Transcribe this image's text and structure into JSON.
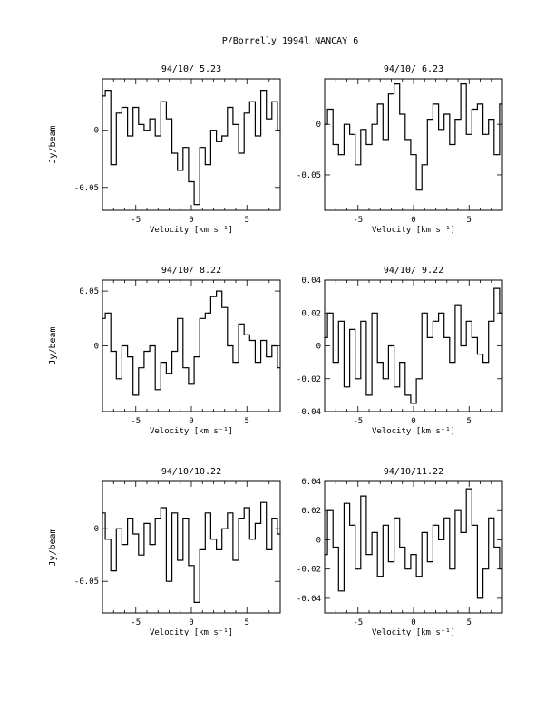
{
  "figure": {
    "title": "P/Borrelly 1994l    NANCAY      6"
  },
  "chart_data": [
    {
      "type": "line",
      "title": "94/10/ 5.23",
      "xlabel": "Velocity [km s⁻¹]",
      "ylabel": "Jy/beam",
      "xlim": [
        -8,
        8
      ],
      "ylim": [
        -0.07,
        0.045
      ],
      "xticks": [
        -5,
        0,
        5
      ],
      "yticks": [
        0,
        -0.05
      ],
      "ytick_labels": [
        "0",
        "-0.05"
      ],
      "x": [
        -8,
        -7.5,
        -7,
        -6.5,
        -6,
        -5.5,
        -5,
        -4.5,
        -4,
        -3.5,
        -3,
        -2.5,
        -2,
        -1.5,
        -1,
        -0.5,
        0,
        0.5,
        1,
        1.5,
        2,
        2.5,
        3,
        3.5,
        4,
        4.5,
        5,
        5.5,
        6,
        6.5,
        7,
        7.5,
        8
      ],
      "y": [
        0.03,
        0.035,
        -0.03,
        0.015,
        0.02,
        -0.005,
        0.02,
        0.005,
        0.0,
        0.01,
        -0.005,
        0.025,
        0.01,
        -0.02,
        -0.035,
        -0.015,
        -0.045,
        -0.065,
        -0.015,
        -0.03,
        0.0,
        -0.01,
        -0.005,
        0.02,
        0.005,
        -0.02,
        0.015,
        0.025,
        -0.005,
        0.035,
        0.01,
        0.025,
        0.0
      ]
    },
    {
      "type": "line",
      "title": "94/10/ 6.23",
      "xlabel": "Velocity [km s⁻¹]",
      "ylabel": "",
      "xlim": [
        -8,
        8
      ],
      "ylim": [
        -0.085,
        0.045
      ],
      "xticks": [
        -5,
        0,
        5
      ],
      "yticks": [
        0,
        -0.05
      ],
      "ytick_labels": [
        "0",
        "-0.05"
      ],
      "x": [
        -8,
        -7.5,
        -7,
        -6.5,
        -6,
        -5.5,
        -5,
        -4.5,
        -4,
        -3.5,
        -3,
        -2.5,
        -2,
        -1.5,
        -1,
        -0.5,
        0,
        0.5,
        1,
        1.5,
        2,
        2.5,
        3,
        3.5,
        4,
        4.5,
        5,
        5.5,
        6,
        6.5,
        7,
        7.5,
        8
      ],
      "y": [
        0.0,
        0.015,
        -0.02,
        -0.03,
        0.0,
        -0.01,
        -0.04,
        -0.005,
        -0.02,
        0.0,
        0.02,
        -0.015,
        0.03,
        0.04,
        0.01,
        -0.015,
        -0.03,
        -0.065,
        -0.04,
        0.005,
        0.02,
        -0.005,
        0.01,
        -0.02,
        0.005,
        0.04,
        -0.01,
        0.015,
        0.02,
        -0.01,
        0.005,
        -0.03,
        0.02
      ]
    },
    {
      "type": "line",
      "title": "94/10/ 8.22",
      "xlabel": "Velocity [km s⁻¹]",
      "ylabel": "Jy/beam",
      "xlim": [
        -8,
        8
      ],
      "ylim": [
        -0.06,
        0.06
      ],
      "xticks": [
        -5,
        0,
        5
      ],
      "yticks": [
        0.05,
        0
      ],
      "ytick_labels": [
        "0.05",
        "0"
      ],
      "x": [
        -8,
        -7.5,
        -7,
        -6.5,
        -6,
        -5.5,
        -5,
        -4.5,
        -4,
        -3.5,
        -3,
        -2.5,
        -2,
        -1.5,
        -1,
        -0.5,
        0,
        0.5,
        1,
        1.5,
        2,
        2.5,
        3,
        3.5,
        4,
        4.5,
        5,
        5.5,
        6,
        6.5,
        7,
        7.5,
        8
      ],
      "y": [
        0.025,
        0.03,
        -0.005,
        -0.03,
        0.0,
        -0.01,
        -0.045,
        -0.02,
        -0.005,
        0.0,
        -0.04,
        -0.015,
        -0.025,
        -0.005,
        0.025,
        -0.02,
        -0.035,
        -0.01,
        0.025,
        0.03,
        0.045,
        0.05,
        0.035,
        0.0,
        -0.015,
        0.02,
        0.01,
        0.005,
        -0.015,
        0.005,
        -0.01,
        0.0,
        -0.02
      ]
    },
    {
      "type": "line",
      "title": "94/10/ 9.22",
      "xlabel": "Velocity [km s⁻¹]",
      "ylabel": "",
      "xlim": [
        -8,
        8
      ],
      "ylim": [
        -0.04,
        0.04
      ],
      "xticks": [
        -5,
        0,
        5
      ],
      "yticks": [
        0.04,
        0.02,
        0,
        -0.02,
        -0.04
      ],
      "ytick_labels": [
        "0.04",
        "0.02",
        "0",
        "-0.02",
        "-0.04"
      ],
      "x": [
        -8,
        -7.5,
        -7,
        -6.5,
        -6,
        -5.5,
        -5,
        -4.5,
        -4,
        -3.5,
        -3,
        -2.5,
        -2,
        -1.5,
        -1,
        -0.5,
        0,
        0.5,
        1,
        1.5,
        2,
        2.5,
        3,
        3.5,
        4,
        4.5,
        5,
        5.5,
        6,
        6.5,
        7,
        7.5,
        8
      ],
      "y": [
        0.005,
        0.02,
        -0.01,
        0.015,
        -0.025,
        0.01,
        -0.02,
        0.015,
        -0.03,
        0.02,
        -0.01,
        -0.02,
        0.0,
        -0.025,
        -0.01,
        -0.03,
        -0.035,
        -0.02,
        0.02,
        0.005,
        0.015,
        0.02,
        0.005,
        -0.01,
        0.025,
        0.0,
        0.015,
        0.005,
        -0.005,
        -0.01,
        0.015,
        0.035,
        0.02
      ]
    },
    {
      "type": "line",
      "title": "94/10/10.22",
      "xlabel": "Velocity [km s⁻¹]",
      "ylabel": "Jy/beam",
      "xlim": [
        -8,
        8
      ],
      "ylim": [
        -0.08,
        0.045
      ],
      "xticks": [
        -5,
        0,
        5
      ],
      "yticks": [
        0,
        -0.05
      ],
      "ytick_labels": [
        "0",
        "-0.05"
      ],
      "x": [
        -8,
        -7.5,
        -7,
        -6.5,
        -6,
        -5.5,
        -5,
        -4.5,
        -4,
        -3.5,
        -3,
        -2.5,
        -2,
        -1.5,
        -1,
        -0.5,
        0,
        0.5,
        1,
        1.5,
        2,
        2.5,
        3,
        3.5,
        4,
        4.5,
        5,
        5.5,
        6,
        6.5,
        7,
        7.5,
        8
      ],
      "y": [
        0.015,
        -0.01,
        -0.04,
        0.0,
        -0.015,
        0.01,
        -0.005,
        -0.025,
        0.005,
        -0.015,
        0.01,
        0.02,
        -0.05,
        0.015,
        -0.03,
        0.01,
        -0.035,
        -0.07,
        -0.02,
        0.015,
        -0.01,
        -0.02,
        0.0,
        0.015,
        -0.03,
        0.01,
        0.02,
        -0.01,
        0.005,
        0.025,
        -0.02,
        0.01,
        -0.005
      ]
    },
    {
      "type": "line",
      "title": "94/10/11.22",
      "xlabel": "Velocity [km s⁻¹]",
      "ylabel": "",
      "xlim": [
        -8,
        8
      ],
      "ylim": [
        -0.05,
        0.04
      ],
      "xticks": [
        -5,
        0,
        5
      ],
      "yticks": [
        0.04,
        0.02,
        0,
        -0.02,
        -0.04
      ],
      "ytick_labels": [
        "0.04",
        "0.02",
        "0",
        "-0.02",
        "-0.04"
      ],
      "x": [
        -8,
        -7.5,
        -7,
        -6.5,
        -6,
        -5.5,
        -5,
        -4.5,
        -4,
        -3.5,
        -3,
        -2.5,
        -2,
        -1.5,
        -1,
        -0.5,
        0,
        0.5,
        1,
        1.5,
        2,
        2.5,
        3,
        3.5,
        4,
        4.5,
        5,
        5.5,
        6,
        6.5,
        7,
        7.5,
        8
      ],
      "y": [
        -0.01,
        0.02,
        -0.005,
        -0.035,
        0.025,
        0.01,
        -0.02,
        0.03,
        -0.01,
        0.005,
        -0.025,
        0.01,
        -0.015,
        0.015,
        -0.005,
        -0.02,
        -0.01,
        -0.025,
        0.005,
        -0.015,
        0.01,
        0.0,
        0.015,
        -0.02,
        0.02,
        0.005,
        0.035,
        0.01,
        -0.04,
        -0.02,
        0.015,
        -0.005,
        -0.02
      ]
    }
  ]
}
